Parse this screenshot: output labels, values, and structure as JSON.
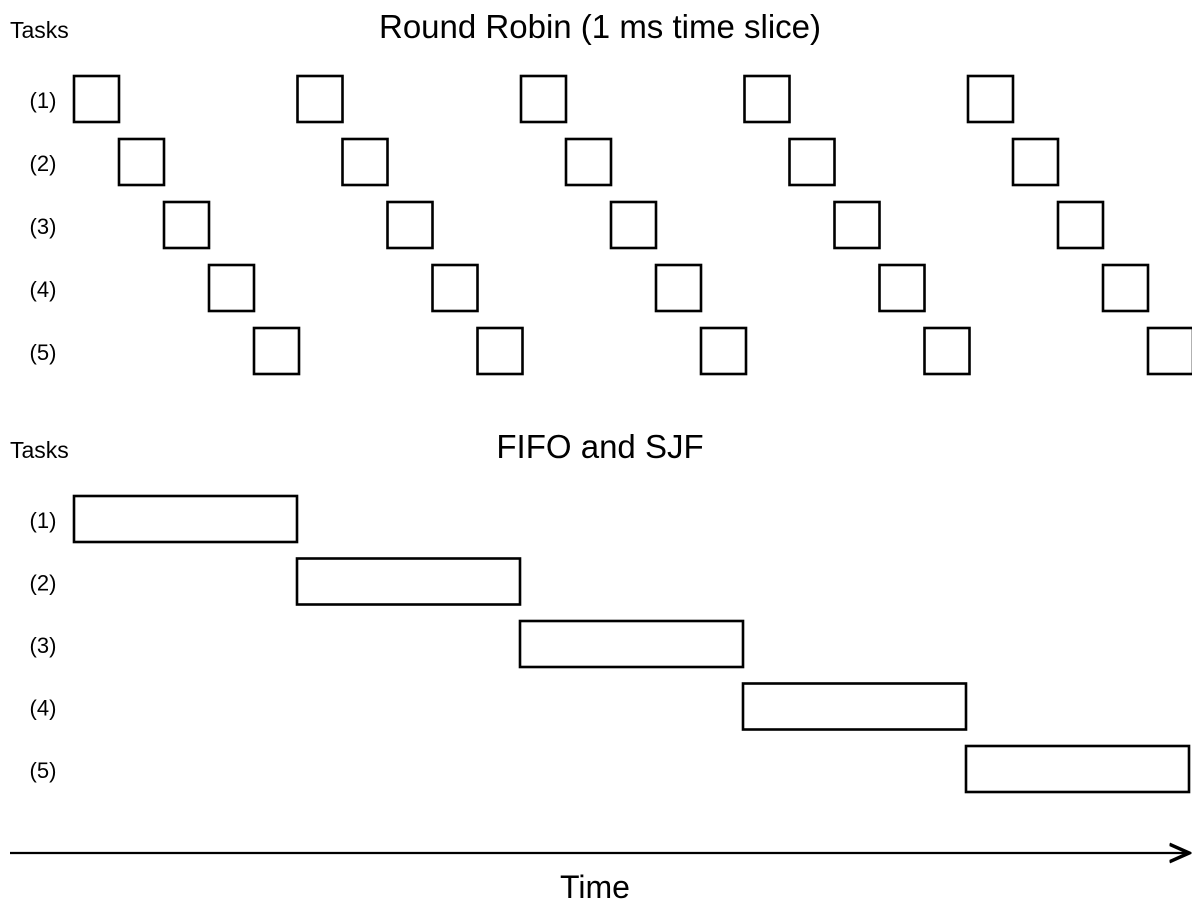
{
  "round_robin": {
    "tasks_label": "Tasks",
    "title": "Round Robin (1 ms time slice)",
    "rows": [
      "(1)",
      "(2)",
      "(3)",
      "(4)",
      "(5)"
    ],
    "cycles": 5
  },
  "fifo_sjf": {
    "tasks_label": "Tasks",
    "title": "FIFO and SJF",
    "rows": [
      "(1)",
      "(2)",
      "(3)",
      "(4)",
      "(5)"
    ]
  },
  "axis": {
    "label": "Time"
  }
}
